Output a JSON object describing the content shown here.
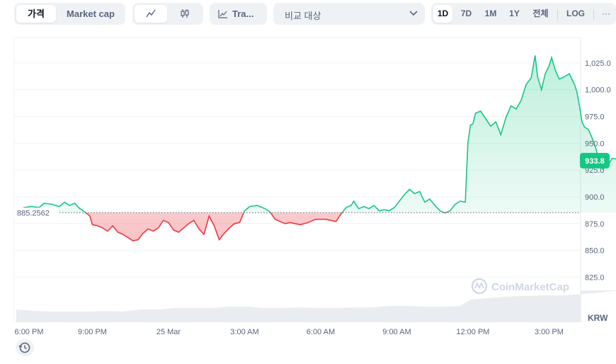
{
  "toolbar": {
    "metric_tabs": [
      "가격",
      "Market cap"
    ],
    "active_metric": "가격",
    "chart_type_icons": [
      "line-chart-icon",
      "candlestick-icon"
    ],
    "tradingview_label": "Tra...",
    "compare_label": "비교 대상",
    "ranges": [
      "1D",
      "7D",
      "1M",
      "1Y",
      "전체"
    ],
    "active_range": "1D",
    "log_label": "LOG",
    "more_label": "···"
  },
  "colors": {
    "up": "#16c784",
    "down": "#ea3943",
    "up_fill": "#d6f3e6",
    "down_fill": "#f7cfd2",
    "grid": "#eff2f5"
  },
  "chart_data": {
    "type": "area",
    "currency": "KRW",
    "reference_price": "885.2562",
    "reference_value": 885.2562,
    "current_price": "933.8",
    "ylim": [
      800,
      1050
    ],
    "y_ticks": [
      825.0,
      850.0,
      875.0,
      900.0,
      925.0,
      950.0,
      975.0,
      1000.0,
      1025.0
    ],
    "y_tick_labels": [
      "825.0",
      "850.0",
      "875.0",
      "900.0",
      "925.0",
      "950.0",
      "975.0",
      "1,000.0",
      "1,025.0"
    ],
    "x_hours": [
      0,
      3,
      6,
      9,
      12,
      15,
      18,
      21
    ],
    "x_tick_labels": [
      "6:00 PM",
      "9:00 PM",
      "25 Mar",
      "3:00 AM",
      "6:00 AM",
      "9:00 AM",
      "12:00 PM",
      "3:00 PM"
    ],
    "xlim": [
      0,
      24.3
    ],
    "watermark": "CoinMarketCap",
    "series": [
      {
        "values": [
          [
            0.0,
            886
          ],
          [
            0.3,
            890
          ],
          [
            0.6,
            891
          ],
          [
            0.9,
            890
          ],
          [
            1.1,
            894
          ],
          [
            1.4,
            893
          ],
          [
            1.7,
            891
          ],
          [
            1.9,
            895
          ],
          [
            2.1,
            892
          ],
          [
            2.3,
            894
          ],
          [
            2.5,
            889
          ],
          [
            2.7,
            886
          ],
          [
            2.9,
            882
          ],
          [
            3.0,
            874
          ],
          [
            3.2,
            873
          ],
          [
            3.4,
            871
          ],
          [
            3.6,
            868
          ],
          [
            3.8,
            873
          ],
          [
            4.0,
            867
          ],
          [
            4.2,
            865
          ],
          [
            4.4,
            862
          ],
          [
            4.6,
            859
          ],
          [
            4.8,
            860
          ],
          [
            5.0,
            866
          ],
          [
            5.2,
            870
          ],
          [
            5.4,
            868
          ],
          [
            5.6,
            871
          ],
          [
            5.8,
            878
          ],
          [
            6.0,
            876
          ],
          [
            6.2,
            869
          ],
          [
            6.4,
            867
          ],
          [
            6.6,
            871
          ],
          [
            6.8,
            875
          ],
          [
            7.0,
            878
          ],
          [
            7.2,
            870
          ],
          [
            7.4,
            865
          ],
          [
            7.6,
            882
          ],
          [
            7.8,
            873
          ],
          [
            8.0,
            860
          ],
          [
            8.2,
            866
          ],
          [
            8.4,
            871
          ],
          [
            8.6,
            875
          ],
          [
            8.8,
            876
          ],
          [
            9.0,
            887
          ],
          [
            9.2,
            891
          ],
          [
            9.5,
            892
          ],
          [
            9.8,
            889
          ],
          [
            10.0,
            886
          ],
          [
            10.2,
            879
          ],
          [
            10.4,
            877
          ],
          [
            10.6,
            875
          ],
          [
            10.8,
            876
          ],
          [
            11.0,
            875
          ],
          [
            11.2,
            874
          ],
          [
            11.5,
            876
          ],
          [
            11.8,
            879
          ],
          [
            12.0,
            879
          ],
          [
            12.2,
            879
          ],
          [
            12.4,
            878
          ],
          [
            12.6,
            877
          ],
          [
            12.8,
            884
          ],
          [
            13.0,
            890
          ],
          [
            13.2,
            892
          ],
          [
            13.3,
            896
          ],
          [
            13.5,
            889
          ],
          [
            13.7,
            891
          ],
          [
            13.9,
            889
          ],
          [
            14.1,
            892
          ],
          [
            14.3,
            887
          ],
          [
            14.5,
            888
          ],
          [
            14.7,
            887
          ],
          [
            14.9,
            890
          ],
          [
            15.1,
            896
          ],
          [
            15.3,
            902
          ],
          [
            15.5,
            907
          ],
          [
            15.7,
            903
          ],
          [
            15.9,
            905
          ],
          [
            16.1,
            895
          ],
          [
            16.3,
            898
          ],
          [
            16.5,
            892
          ],
          [
            16.7,
            887
          ],
          [
            16.9,
            885
          ],
          [
            17.1,
            887
          ],
          [
            17.3,
            893
          ],
          [
            17.5,
            896
          ],
          [
            17.7,
            895
          ],
          [
            17.8,
            950
          ],
          [
            17.9,
            967
          ],
          [
            18.0,
            968
          ],
          [
            18.1,
            978
          ],
          [
            18.3,
            980
          ],
          [
            18.5,
            973
          ],
          [
            18.7,
            966
          ],
          [
            18.9,
            970
          ],
          [
            19.1,
            958
          ],
          [
            19.3,
            974
          ],
          [
            19.5,
            985
          ],
          [
            19.7,
            982
          ],
          [
            19.9,
            990
          ],
          [
            20.1,
            1005
          ],
          [
            20.3,
            1011
          ],
          [
            20.45,
            1032
          ],
          [
            20.55,
            1012
          ],
          [
            20.7,
            1000
          ],
          [
            20.85,
            1015
          ],
          [
            21.0,
            1022
          ],
          [
            21.1,
            1030
          ],
          [
            21.25,
            1018
          ],
          [
            21.4,
            1010
          ],
          [
            21.6,
            1012
          ],
          [
            21.8,
            1015
          ],
          [
            22.0,
            1005
          ],
          [
            22.1,
            998
          ],
          [
            22.2,
            985
          ],
          [
            22.3,
            970
          ],
          [
            22.4,
            965
          ],
          [
            22.55,
            963
          ],
          [
            22.7,
            955
          ],
          [
            22.85,
            945
          ],
          [
            23.0,
            930
          ],
          [
            23.1,
            926
          ],
          [
            23.3,
            929
          ],
          [
            23.5,
            936
          ],
          [
            23.7,
            935
          ],
          [
            23.9,
            934
          ],
          [
            24.0,
            933.8
          ]
        ]
      }
    ],
    "volume": [
      [
        0,
        18
      ],
      [
        0.7,
        16
      ],
      [
        1.4,
        15
      ],
      [
        2.1,
        15
      ],
      [
        2.8,
        15
      ],
      [
        3.5,
        16
      ],
      [
        4.2,
        15
      ],
      [
        4.9,
        18
      ],
      [
        5.6,
        18
      ],
      [
        6.3,
        20
      ],
      [
        7.0,
        20
      ],
      [
        7.7,
        20
      ],
      [
        8.4,
        22
      ],
      [
        9.1,
        22
      ],
      [
        9.8,
        20
      ],
      [
        10.5,
        20
      ],
      [
        11.2,
        21
      ],
      [
        11.9,
        20
      ],
      [
        12.6,
        20
      ],
      [
        13.3,
        21
      ],
      [
        14.0,
        21
      ],
      [
        14.7,
        23
      ],
      [
        15.4,
        23
      ],
      [
        16.1,
        22
      ],
      [
        16.8,
        22
      ],
      [
        17.5,
        23
      ],
      [
        17.9,
        32
      ],
      [
        18.6,
        34
      ],
      [
        19.3,
        36
      ],
      [
        20.0,
        37
      ],
      [
        20.7,
        38
      ],
      [
        21.4,
        38
      ],
      [
        22.1,
        39
      ],
      [
        22.8,
        41
      ],
      [
        23.5,
        44
      ],
      [
        24.0,
        45
      ]
    ]
  }
}
